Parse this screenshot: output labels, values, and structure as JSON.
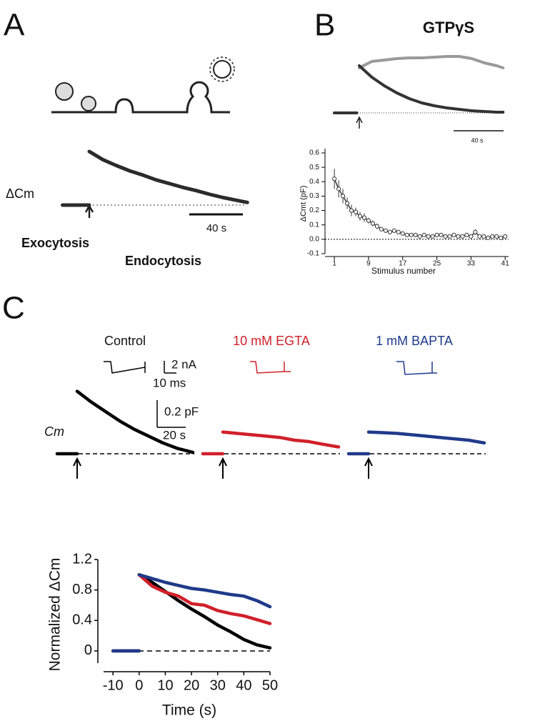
{
  "chart_data": [
    {
      "type": "trace",
      "panel": "A",
      "y_label": "ΔCm",
      "annotations": [
        "Exocytosis",
        "Endocytosis"
      ],
      "scale_bar": {
        "value": 40,
        "label": "40 s"
      },
      "series": [
        {
          "color": "#2b2b2b",
          "x": [
            -20,
            -15,
            -10,
            -5,
            0,
            0,
            0,
            10,
            20,
            30,
            40,
            50,
            60,
            70,
            80,
            90,
            100,
            110,
            118
          ],
          "values": [
            0,
            0,
            0,
            0,
            0,
            null,
            1,
            0.85,
            0.74,
            0.64,
            0.56,
            0.47,
            0.4,
            0.33,
            0.27,
            0.2,
            0.14,
            0.09,
            0.05
          ]
        }
      ]
    },
    {
      "type": "trace",
      "panel": "B",
      "title": "GTPγS",
      "scale_bar": {
        "value": 40,
        "label": "40 s"
      },
      "series": [
        {
          "color": "#9a9a9a",
          "x": [
            0,
            10,
            20,
            30,
            40,
            50,
            60,
            70,
            80,
            90,
            100,
            110,
            115
          ],
          "values": [
            0.63,
            0.72,
            0.74,
            0.76,
            0.77,
            0.77,
            0.78,
            0.79,
            0.79,
            0.76,
            0.7,
            0.66,
            0.63
          ]
        },
        {
          "color": "#333333",
          "x": [
            -20,
            -15,
            -10,
            -5,
            -2,
            0,
            0,
            10,
            20,
            30,
            40,
            50,
            60,
            70,
            80,
            90,
            100,
            110,
            115
          ],
          "values": [
            0,
            0,
            0,
            0,
            0,
            null,
            0.66,
            0.5,
            0.38,
            0.28,
            0.2,
            0.14,
            0.1,
            0.07,
            0.05,
            0.03,
            0.02,
            0.01,
            0.01
          ]
        }
      ]
    },
    {
      "type": "scatter",
      "x_label": "Stimulus number",
      "y_label": "ΔCmt (pF)",
      "color": "#333333",
      "xlim": [
        -1.2,
        41.8
      ],
      "ylim": [
        -0.1,
        0.6
      ],
      "xticks": [
        1,
        9,
        17,
        25,
        33,
        41
      ],
      "yticks": [
        -0.1,
        {
          "value": 0,
          "label": "0.0"
        },
        0.1,
        0.2,
        0.3,
        0.4,
        0.5,
        0.6
      ],
      "x": [
        1,
        2,
        3,
        4,
        5,
        6,
        7,
        8,
        9,
        10,
        11,
        12,
        13,
        14,
        15,
        16,
        17,
        18,
        19,
        20,
        21,
        22,
        23,
        24,
        25,
        26,
        27,
        28,
        29,
        30,
        31,
        32,
        33,
        34,
        35,
        36,
        37,
        38,
        39,
        40,
        41
      ],
      "values": [
        0.42,
        0.35,
        0.3,
        0.25,
        0.2,
        0.19,
        0.16,
        0.15,
        0.13,
        0.11,
        0.09,
        0.07,
        0.06,
        0.05,
        0.06,
        0.05,
        0.04,
        0.03,
        0.03,
        0.03,
        0.02,
        0.03,
        0.02,
        0.02,
        0.03,
        0.03,
        0.02,
        0.02,
        0.03,
        0.02,
        0.02,
        0.03,
        0.02,
        0.05,
        0.02,
        0.02,
        0.01,
        0.02,
        0.02,
        0.01,
        0.02
      ],
      "errors": [
        0.07,
        0.06,
        0.05,
        0.04,
        0.04,
        0.03,
        0.03,
        0.03,
        0.02,
        0.02,
        0.02,
        0.01,
        0.01,
        0.01,
        0.01,
        0.01,
        0.01,
        0.01,
        0.01,
        0.01,
        0.01,
        0.01,
        0.01,
        0.01,
        0.01,
        0.01,
        0.01,
        0.01,
        0.01,
        0.01,
        0.01,
        0.01,
        0.01,
        0.02,
        0.01,
        0.01,
        0.01,
        0.01,
        0.01,
        0.01,
        0.01
      ]
    },
    {
      "type": "trace",
      "panel": "C",
      "y_label": "Cm",
      "scale_bars": [
        {
          "value": 2,
          "label": "2 nA"
        },
        {
          "value": 10,
          "label": "10 ms"
        },
        {
          "value": 0.2,
          "label": "0.2 pF"
        },
        {
          "value": 20,
          "label": "20 s"
        }
      ],
      "series": [
        {
          "name": "Control",
          "color": "#000000",
          "x": [
            -14,
            -10,
            -6,
            -2,
            0,
            0,
            0,
            10,
            20,
            30,
            40,
            50,
            60,
            70,
            81
          ],
          "values": [
            0,
            0,
            0,
            0,
            0,
            null,
            0.46,
            0.38,
            0.31,
            0.24,
            0.18,
            0.13,
            0.08,
            0.04,
            0.01
          ]
        },
        {
          "name": "10 mM EGTA",
          "color": "#d0202a",
          "x": [
            -14,
            -10,
            -6,
            -2,
            0,
            0,
            0,
            10,
            20,
            30,
            40,
            50,
            60,
            70,
            81
          ],
          "values": [
            0,
            0,
            0,
            0,
            0,
            null,
            0.16,
            0.15,
            0.14,
            0.13,
            0.12,
            0.1,
            0.09,
            0.07,
            0.05
          ]
        },
        {
          "name": "1 mM BAPTA",
          "color": "#1f3a8a",
          "x": [
            -14,
            -10,
            -6,
            -2,
            0,
            0,
            0,
            10,
            20,
            30,
            40,
            50,
            60,
            70,
            81
          ],
          "values": [
            0,
            0,
            0,
            0,
            0,
            null,
            0.16,
            0.155,
            0.15,
            0.14,
            0.13,
            0.12,
            0.11,
            0.1,
            0.08
          ]
        }
      ]
    },
    {
      "type": "line",
      "x_label": "Time (s)",
      "y_label": "Normalized ΔCm",
      "xlim": [
        -13.6,
        50
      ],
      "ylim": [
        -0.16,
        1.2
      ],
      "xticks": [
        -10,
        0,
        10,
        20,
        30,
        40,
        50
      ],
      "yticks": [
        0,
        0.4,
        0.8,
        1.2
      ],
      "series": [
        {
          "color": "#000000",
          "x": [
            -10,
            -5,
            0,
            0,
            0,
            5,
            10,
            15,
            20,
            25,
            30,
            35,
            40,
            45,
            50
          ],
          "values": [
            0,
            0,
            0,
            null,
            1,
            0.9,
            0.78,
            0.66,
            0.55,
            0.45,
            0.34,
            0.25,
            0.15,
            0.08,
            0.04
          ]
        },
        {
          "color": "#d0202a",
          "x": [
            -10,
            -5,
            0,
            0,
            0,
            5,
            10,
            15,
            20,
            25,
            30,
            35,
            40,
            45,
            50
          ],
          "values": [
            0,
            0,
            0,
            null,
            1,
            0.85,
            0.77,
            0.72,
            0.62,
            0.6,
            0.53,
            0.49,
            0.46,
            0.41,
            0.36
          ]
        },
        {
          "color": "#1f3a8a",
          "x": [
            -10,
            -5,
            0,
            0,
            0,
            5,
            10,
            15,
            20,
            25,
            30,
            35,
            40,
            45,
            50
          ],
          "values": [
            0,
            0,
            0,
            null,
            1,
            0.95,
            0.9,
            0.86,
            0.82,
            0.8,
            0.77,
            0.74,
            0.72,
            0.66,
            0.58
          ]
        }
      ]
    }
  ]
}
